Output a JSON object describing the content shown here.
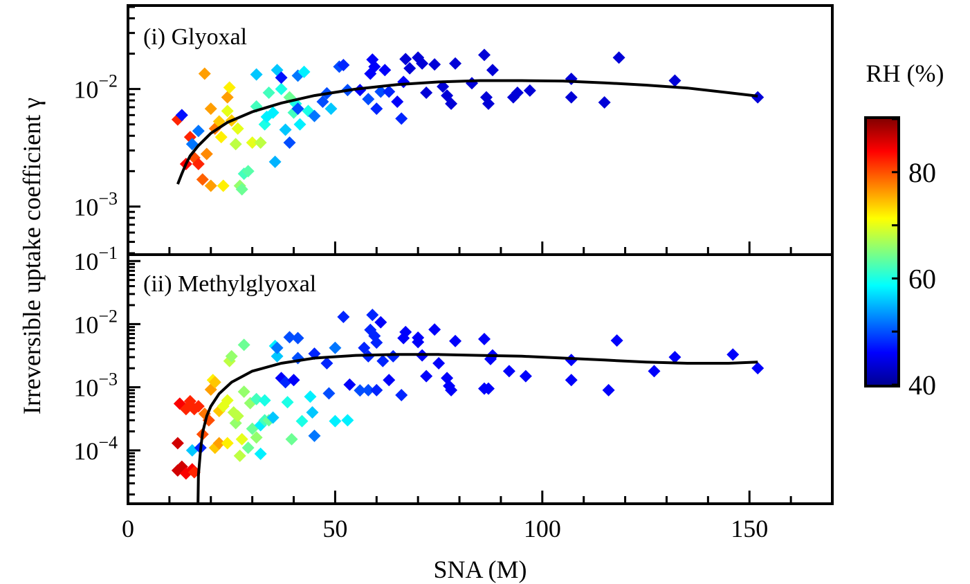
{
  "figure": {
    "ylabel": "Irreversible uptake coefficient γ",
    "xlabel": "SNA (M)",
    "colorbar": {
      "label": "RH (%)",
      "ticks": [
        "80",
        "60",
        "40"
      ],
      "tick_values": [
        80,
        60,
        40
      ],
      "range": [
        40,
        90
      ],
      "colormap": [
        "#00008f",
        "#0000ff",
        "#0080ff",
        "#00ffff",
        "#80ff80",
        "#ffff00",
        "#ff8000",
        "#ff0000",
        "#800000"
      ]
    }
  },
  "chart_data": [
    {
      "type": "scatter",
      "title": "(i) Glyoxal",
      "xlim": [
        0,
        170
      ],
      "ylim": [
        0.0004,
        0.05
      ],
      "yscale": "log",
      "x_ticks": [
        0,
        50,
        100,
        150
      ],
      "x_tick_labels": [
        "0",
        "50",
        "100",
        "150"
      ],
      "y_ticks": [
        0.001,
        0.01
      ],
      "y_tick_labels": [
        {
          "base": "10",
          "exp": "−3"
        },
        {
          "base": "10",
          "exp": "−2"
        }
      ],
      "marker": "diamond",
      "color_by": "RH (%)",
      "points": [
        [
          12,
          0.0055,
          82
        ],
        [
          13,
          0.006,
          47
        ],
        [
          14,
          0.0023,
          84
        ],
        [
          15,
          0.0039,
          82
        ],
        [
          15.5,
          0.0034,
          52
        ],
        [
          16,
          0.0026,
          80
        ],
        [
          17,
          0.0023,
          82
        ],
        [
          17,
          0.0044,
          52
        ],
        [
          18,
          0.0017,
          79
        ],
        [
          18.5,
          0.0135,
          76
        ],
        [
          19,
          0.0028,
          77
        ],
        [
          20,
          0.0068,
          76
        ],
        [
          20,
          0.0015,
          76
        ],
        [
          21,
          0.0046,
          78
        ],
        [
          22,
          0.0053,
          74
        ],
        [
          22.5,
          0.0039,
          72
        ],
        [
          23,
          0.0015,
          72
        ],
        [
          24,
          0.0085,
          76
        ],
        [
          24,
          0.0065,
          70
        ],
        [
          24.5,
          0.0103,
          72
        ],
        [
          25,
          0.0054,
          74
        ],
        [
          26,
          0.0034,
          68
        ],
        [
          26.5,
          0.0046,
          70
        ],
        [
          27,
          0.0015,
          66
        ],
        [
          27.5,
          0.0014,
          64
        ],
        [
          28,
          0.0019,
          62
        ],
        [
          29,
          0.002,
          63
        ],
        [
          30,
          0.0035,
          70
        ],
        [
          31,
          0.0071,
          62
        ],
        [
          31,
          0.0133,
          56
        ],
        [
          32,
          0.0035,
          68
        ],
        [
          33,
          0.005,
          60
        ],
        [
          33.5,
          0.0058,
          58
        ],
        [
          34,
          0.0093,
          62
        ],
        [
          35,
          0.0063,
          58
        ],
        [
          35.5,
          0.0024,
          55
        ],
        [
          36,
          0.0145,
          56
        ],
        [
          37,
          0.01,
          60
        ],
        [
          37,
          0.0125,
          47
        ],
        [
          38,
          0.0045,
          56
        ],
        [
          39,
          0.0085,
          64
        ],
        [
          39,
          0.0035,
          50
        ],
        [
          40,
          0.0063,
          62
        ],
        [
          40.5,
          0.0075,
          60
        ],
        [
          41,
          0.0068,
          50
        ],
        [
          41,
          0.013,
          52
        ],
        [
          41.5,
          0.005,
          58
        ],
        [
          42.5,
          0.014,
          58
        ],
        [
          43.5,
          0.0065,
          60
        ],
        [
          45,
          0.0059,
          52
        ],
        [
          47,
          0.0078,
          50
        ],
        [
          48,
          0.0092,
          50
        ],
        [
          49,
          0.0068,
          56
        ],
        [
          51,
          0.0155,
          50
        ],
        [
          52,
          0.016,
          48
        ],
        [
          53,
          0.0098,
          50
        ],
        [
          56,
          0.0098,
          46
        ],
        [
          58,
          0.0082,
          50
        ],
        [
          58.5,
          0.0135,
          46
        ],
        [
          59,
          0.0178,
          46
        ],
        [
          59.5,
          0.0155,
          46
        ],
        [
          60,
          0.0068,
          48
        ],
        [
          61,
          0.0095,
          50
        ],
        [
          62,
          0.0145,
          46
        ],
        [
          63,
          0.0095,
          48
        ],
        [
          65,
          0.0078,
          46
        ],
        [
          66,
          0.0056,
          48
        ],
        [
          66.5,
          0.0115,
          46
        ],
        [
          67,
          0.018,
          44
        ],
        [
          68,
          0.015,
          44
        ],
        [
          70,
          0.0185,
          44
        ],
        [
          71,
          0.0165,
          44
        ],
        [
          72,
          0.0093,
          44
        ],
        [
          74,
          0.0162,
          44
        ],
        [
          76,
          0.0105,
          44
        ],
        [
          77,
          0.0088,
          44
        ],
        [
          78,
          0.0075,
          44
        ],
        [
          79,
          0.0165,
          44
        ],
        [
          83,
          0.0112,
          44
        ],
        [
          86,
          0.0195,
          44
        ],
        [
          86.5,
          0.0085,
          44
        ],
        [
          87,
          0.0075,
          44
        ],
        [
          88,
          0.0145,
          44
        ],
        [
          93,
          0.0085,
          44
        ],
        [
          94,
          0.0093,
          44
        ],
        [
          97,
          0.0097,
          44
        ],
        [
          107,
          0.0122,
          44
        ],
        [
          107,
          0.0085,
          44
        ],
        [
          115,
          0.0077,
          44
        ],
        [
          118.5,
          0.0185,
          44
        ],
        [
          132,
          0.0118,
          44
        ],
        [
          152,
          0.0085,
          44
        ]
      ],
      "fit_curve": [
        [
          12,
          0.00155
        ],
        [
          13,
          0.0019
        ],
        [
          14,
          0.0023
        ],
        [
          15,
          0.0027
        ],
        [
          17,
          0.0033
        ],
        [
          20,
          0.0042
        ],
        [
          24,
          0.0052
        ],
        [
          30,
          0.0064
        ],
        [
          37,
          0.0076
        ],
        [
          45,
          0.0088
        ],
        [
          55,
          0.01
        ],
        [
          65,
          0.0109
        ],
        [
          75,
          0.0115
        ],
        [
          85,
          0.0118
        ],
        [
          95,
          0.0118
        ],
        [
          105,
          0.0117
        ],
        [
          115,
          0.0113
        ],
        [
          125,
          0.0108
        ],
        [
          135,
          0.0102
        ],
        [
          145,
          0.0093
        ],
        [
          152,
          0.0087
        ]
      ]
    },
    {
      "type": "scatter",
      "title": "(ii) Methylglyoxal",
      "xlim": [
        0,
        170
      ],
      "ylim": [
        1.5e-05,
        0.12
      ],
      "yscale": "log",
      "x_ticks": [
        0,
        50,
        100,
        150
      ],
      "x_tick_labels": [
        "0",
        "50",
        "100",
        "150"
      ],
      "y_ticks": [
        0.0001,
        0.001,
        0.01,
        0.1
      ],
      "y_tick_labels": [
        {
          "base": "10",
          "exp": "−4"
        },
        {
          "base": "10",
          "exp": "−3"
        },
        {
          "base": "10",
          "exp": "−2"
        },
        {
          "base": "10",
          "exp": "−1"
        }
      ],
      "marker": "diamond",
      "color_by": "RH (%)",
      "points": [
        [
          12,
          4.8e-05,
          86
        ],
        [
          12,
          0.00013,
          86
        ],
        [
          12.5,
          0.00055,
          84
        ],
        [
          13,
          5.5e-05,
          86
        ],
        [
          14,
          4.3e-05,
          84
        ],
        [
          14,
          0.00045,
          82
        ],
        [
          15,
          0.0006,
          82
        ],
        [
          15.5,
          0.0001,
          56
        ],
        [
          15.5,
          5e-05,
          84
        ],
        [
          16,
          0.00045,
          82
        ],
        [
          16,
          4.5e-05,
          82
        ],
        [
          17,
          0.0005,
          82
        ],
        [
          17.5,
          0.00011,
          48
        ],
        [
          18,
          0.00018,
          80
        ],
        [
          18.5,
          0.00038,
          78
        ],
        [
          19.5,
          0.0003,
          80
        ],
        [
          20,
          0.00092,
          76
        ],
        [
          20.5,
          0.0013,
          72
        ],
        [
          21,
          0.00011,
          74
        ],
        [
          21,
          0.0012,
          74
        ],
        [
          22,
          0.00013,
          76
        ],
        [
          22,
          0.00042,
          74
        ],
        [
          23,
          0.0005,
          70
        ],
        [
          24,
          0.00013,
          72
        ],
        [
          24,
          0.00062,
          70
        ],
        [
          24.5,
          0.0026,
          68
        ],
        [
          25,
          0.0031,
          66
        ],
        [
          25.5,
          0.0004,
          68
        ],
        [
          26,
          0.00027,
          66
        ],
        [
          26.5,
          0.00035,
          68
        ],
        [
          27,
          8.2e-05,
          68
        ],
        [
          27.5,
          0.00015,
          70
        ],
        [
          28,
          0.0047,
          64
        ],
        [
          28,
          0.00085,
          66
        ],
        [
          29,
          0.00011,
          64
        ],
        [
          29.5,
          0.00056,
          66
        ],
        [
          30,
          0.00022,
          64
        ],
        [
          31,
          0.00016,
          66
        ],
        [
          31,
          0.00065,
          62
        ],
        [
          32,
          0.00025,
          58
        ],
        [
          32,
          8.8e-05,
          58
        ],
        [
          33,
          0.0003,
          62
        ],
        [
          33,
          0.00062,
          60
        ],
        [
          34,
          0.0003,
          64
        ],
        [
          35,
          0.00033,
          56
        ],
        [
          35.5,
          0.0045,
          58
        ],
        [
          36,
          0.0031,
          56
        ],
        [
          36,
          0.0042,
          52
        ],
        [
          37,
          0.0014,
          46
        ],
        [
          38,
          0.0012,
          48
        ],
        [
          38.5,
          0.00058,
          60
        ],
        [
          39,
          0.0062,
          50
        ],
        [
          39.5,
          0.00015,
          64
        ],
        [
          40,
          0.0013,
          46
        ],
        [
          41,
          0.006,
          50
        ],
        [
          41,
          0.0029,
          50
        ],
        [
          42,
          0.00029,
          60
        ],
        [
          44,
          0.00071,
          58
        ],
        [
          44.5,
          0.0004,
          56
        ],
        [
          45,
          0.00017,
          52
        ],
        [
          45,
          0.0034,
          48
        ],
        [
          48,
          0.0024,
          48
        ],
        [
          48.5,
          0.0008,
          50
        ],
        [
          50,
          0.00029,
          58
        ],
        [
          50,
          0.0042,
          52
        ],
        [
          52,
          0.013,
          48
        ],
        [
          53,
          0.0003,
          58
        ],
        [
          53.5,
          0.0011,
          46
        ],
        [
          56,
          0.00089,
          50
        ],
        [
          57,
          0.0042,
          48
        ],
        [
          58,
          0.0031,
          48
        ],
        [
          58,
          0.0009,
          50
        ],
        [
          58.5,
          0.0081,
          48
        ],
        [
          59,
          0.014,
          48
        ],
        [
          59.5,
          0.0065,
          48
        ],
        [
          60,
          0.0051,
          48
        ],
        [
          60,
          0.0009,
          48
        ],
        [
          61,
          0.0107,
          46
        ],
        [
          61.5,
          0.0026,
          48
        ],
        [
          63,
          0.0013,
          46
        ],
        [
          64,
          0.0031,
          48
        ],
        [
          66,
          0.00075,
          48
        ],
        [
          66.5,
          0.006,
          46
        ],
        [
          67,
          0.0075,
          46
        ],
        [
          70,
          0.0061,
          46
        ],
        [
          70,
          0.0052,
          46
        ],
        [
          71,
          0.0032,
          46
        ],
        [
          72,
          0.0015,
          46
        ],
        [
          74,
          0.0082,
          46
        ],
        [
          75,
          0.0024,
          46
        ],
        [
          77,
          0.0014,
          46
        ],
        [
          77.5,
          0.00105,
          46
        ],
        [
          78,
          0.0009,
          46
        ],
        [
          79,
          0.0054,
          46
        ],
        [
          86,
          0.0058,
          46
        ],
        [
          86,
          0.00095,
          46
        ],
        [
          87,
          0.00095,
          46
        ],
        [
          87.5,
          0.0028,
          46
        ],
        [
          88,
          0.0032,
          46
        ],
        [
          92,
          0.0018,
          46
        ],
        [
          96,
          0.0015,
          46
        ],
        [
          107,
          0.0027,
          46
        ],
        [
          107,
          0.0013,
          46
        ],
        [
          116,
          0.0009,
          46
        ],
        [
          118,
          0.0055,
          46
        ],
        [
          127,
          0.0018,
          46
        ],
        [
          132,
          0.003,
          46
        ],
        [
          146,
          0.0033,
          46
        ],
        [
          152,
          0.002,
          46
        ]
      ],
      "fit_curve": [
        [
          16.9,
          1.5e-05
        ],
        [
          17,
          4e-05
        ],
        [
          17.5,
          0.0001
        ],
        [
          18,
          0.00019
        ],
        [
          19,
          0.00035
        ],
        [
          20,
          0.0005
        ],
        [
          22,
          0.00079
        ],
        [
          25,
          0.0012
        ],
        [
          30,
          0.0018
        ],
        [
          37,
          0.0024
        ],
        [
          45,
          0.0029
        ],
        [
          55,
          0.0032
        ],
        [
          65,
          0.0033
        ],
        [
          75,
          0.0033
        ],
        [
          85,
          0.0032
        ],
        [
          95,
          0.0031
        ],
        [
          105,
          0.0029
        ],
        [
          115,
          0.0027
        ],
        [
          125,
          0.0025
        ],
        [
          135,
          0.0024
        ],
        [
          145,
          0.0024
        ],
        [
          152,
          0.0025
        ]
      ]
    }
  ]
}
